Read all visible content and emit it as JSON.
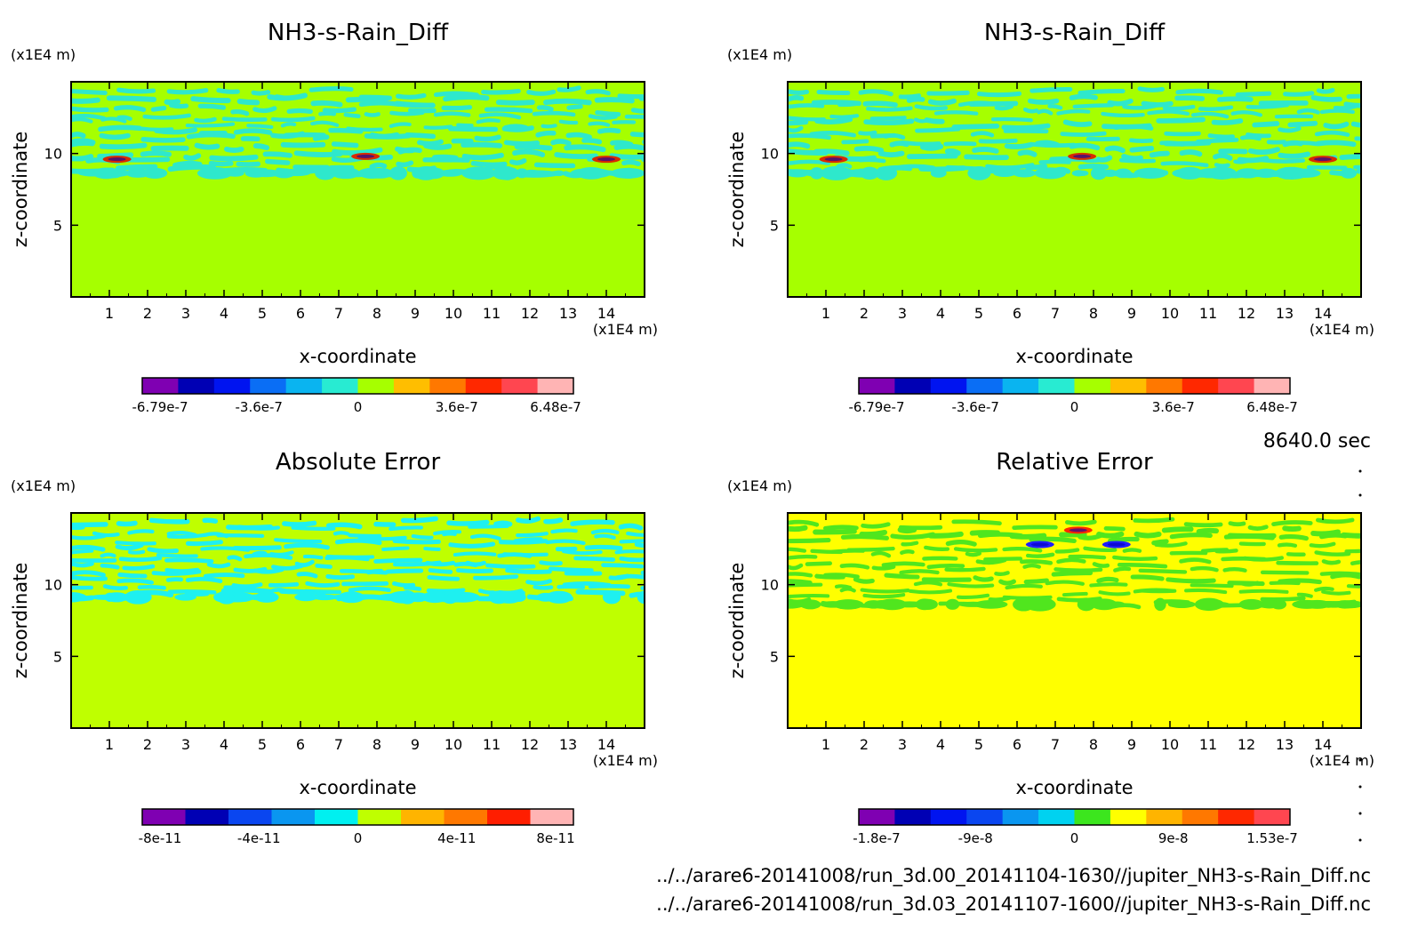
{
  "time_label": "8640.0 sec",
  "files": [
    "../../arare6-20141008/run_3d.00_20141104-1630//jupiter_NH3-s-Rain_Diff.nc",
    "../../arare6-20141008/run_3d.03_20141107-1600//jupiter_NH3-s-Rain_Diff.nc"
  ],
  "chart_data": [
    {
      "type": "heatmap",
      "title": "NH3-s-Rain_Diff",
      "xlabel": "x-coordinate",
      "ylabel": "z-coordinate",
      "x_unit": "(x1E4 m)",
      "y_unit": "(x1E4 m)",
      "xlim": [
        0,
        15
      ],
      "ylim": [
        0,
        15
      ],
      "xticks": [
        "1",
        "2",
        "3",
        "4",
        "5",
        "6",
        "7",
        "8",
        "9",
        "10",
        "11",
        "12",
        "13",
        "14"
      ],
      "yticks": [
        "5",
        "10"
      ],
      "background_color": "#a6ff00",
      "field": {
        "layer_bottom": 8.5,
        "layer_top": 14.5,
        "primary_color": "#2ee8cc",
        "peaks": [
          {
            "x": 1.2,
            "z": 9.6,
            "color": "#d92b00"
          },
          {
            "x": 7.7,
            "z": 9.8,
            "color": "#d92b00"
          },
          {
            "x": 14.0,
            "z": 9.6,
            "color": "#d92b00"
          }
        ]
      },
      "colorbar": {
        "colors": [
          "#7f00b2",
          "#0000b4",
          "#0014f0",
          "#0a6ef5",
          "#0ab4f0",
          "#28ebd2",
          "#a6ff00",
          "#ffbe00",
          "#ff7800",
          "#ff2800",
          "#ff4650",
          "#ffb4b4"
        ],
        "labels": [
          "-6.79e-7",
          "-3.6e-7",
          "0",
          "3.6e-7",
          "6.48e-7"
        ]
      }
    },
    {
      "type": "heatmap",
      "title": "NH3-s-Rain_Diff",
      "xlabel": "x-coordinate",
      "ylabel": "z-coordinate",
      "x_unit": "(x1E4 m)",
      "y_unit": "(x1E4 m)",
      "xlim": [
        0,
        15
      ],
      "ylim": [
        0,
        15
      ],
      "xticks": [
        "1",
        "2",
        "3",
        "4",
        "5",
        "6",
        "7",
        "8",
        "9",
        "10",
        "11",
        "12",
        "13",
        "14"
      ],
      "yticks": [
        "5",
        "10"
      ],
      "background_color": "#a6ff00",
      "field": {
        "layer_bottom": 8.5,
        "layer_top": 14.5,
        "primary_color": "#2ee8cc",
        "peaks": [
          {
            "x": 1.2,
            "z": 9.6,
            "color": "#d92b00"
          },
          {
            "x": 7.7,
            "z": 9.8,
            "color": "#d92b00"
          },
          {
            "x": 14.0,
            "z": 9.6,
            "color": "#d92b00"
          }
        ]
      },
      "colorbar": {
        "colors": [
          "#7f00b2",
          "#0000b4",
          "#0014f0",
          "#0a6ef5",
          "#0ab4f0",
          "#28ebd2",
          "#a6ff00",
          "#ffbe00",
          "#ff7800",
          "#ff2800",
          "#ff4650",
          "#ffb4b4"
        ],
        "labels": [
          "-6.79e-7",
          "-3.6e-7",
          "0",
          "3.6e-7",
          "6.48e-7"
        ]
      }
    },
    {
      "type": "heatmap",
      "title": "Absolute Error",
      "xlabel": "x-coordinate",
      "ylabel": "z-coordinate",
      "x_unit": "(x1E4 m)",
      "y_unit": "(x1E4 m)",
      "xlim": [
        0,
        15
      ],
      "ylim": [
        0,
        15
      ],
      "xticks": [
        "1",
        "2",
        "3",
        "4",
        "5",
        "6",
        "7",
        "8",
        "9",
        "10",
        "11",
        "12",
        "13",
        "14"
      ],
      "yticks": [
        "5",
        "10"
      ],
      "background_color": "#bfff00",
      "field": {
        "layer_bottom": 9.0,
        "layer_top": 14.5,
        "primary_color": "#1ef0f0",
        "peaks": []
      },
      "colorbar": {
        "colors": [
          "#7f00b2",
          "#0000b4",
          "#0a46f0",
          "#0a96f0",
          "#00f0f0",
          "#bfff00",
          "#ffb400",
          "#ff7800",
          "#ff1e00",
          "#ffb4b4"
        ],
        "labels": [
          "-8e-11",
          "-4e-11",
          "0",
          "4e-11",
          "8e-11"
        ]
      }
    },
    {
      "type": "heatmap",
      "title": "Relative Error",
      "xlabel": "x-coordinate",
      "ylabel": "z-coordinate",
      "x_unit": "(x1E4 m)",
      "y_unit": "(x1E4 m)",
      "xlim": [
        0,
        15
      ],
      "ylim": [
        0,
        15
      ],
      "xticks": [
        "1",
        "2",
        "3",
        "4",
        "5",
        "6",
        "7",
        "8",
        "9",
        "10",
        "11",
        "12",
        "13",
        "14"
      ],
      "yticks": [
        "5",
        "10"
      ],
      "background_color": "#ffff00",
      "field": {
        "layer_bottom": 8.5,
        "layer_top": 14.5,
        "primary_color": "#50e61e",
        "peaks": [
          {
            "x": 7.6,
            "z": 13.8,
            "color": "#ff2800"
          },
          {
            "x": 6.6,
            "z": 12.8,
            "color": "#1e1eff"
          },
          {
            "x": 8.6,
            "z": 12.8,
            "color": "#1e1eff"
          }
        ]
      },
      "colorbar": {
        "colors": [
          "#7f00b2",
          "#0000b4",
          "#0014f0",
          "#0a46f0",
          "#0a96f0",
          "#00d2f0",
          "#3ce61e",
          "#ffff00",
          "#ffb400",
          "#ff7800",
          "#ff2800",
          "#ff4650"
        ],
        "labels": [
          "-1.8e-7",
          "-9e-8",
          "0",
          "9e-8",
          "1.53e-7"
        ]
      }
    }
  ]
}
